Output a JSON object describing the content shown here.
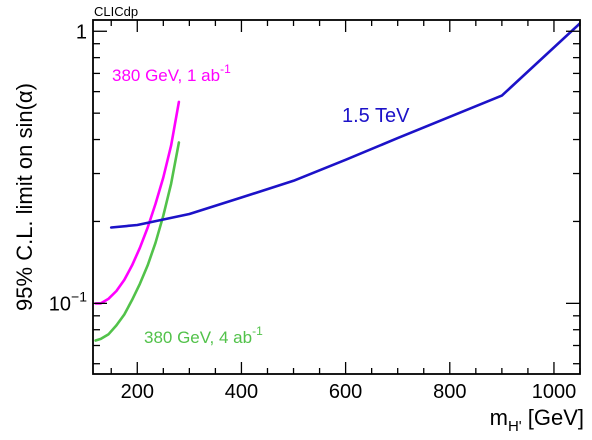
{
  "chart_data": {
    "type": "line",
    "tag": "CLICdp",
    "xlabel": {
      "base": "m",
      "sub": "H'",
      "unit": " [GeV]"
    },
    "ylabel": {
      "text": "95% C.L. limit  on sin(",
      "alpha": "α",
      "close": ")"
    },
    "xlim": [
      115,
      1050
    ],
    "ylim": [
      0.055,
      1.1
    ],
    "yscale": "log",
    "grid": false,
    "x_ticks": [
      200,
      400,
      600,
      800,
      1000
    ],
    "y_ticks": [
      {
        "value": 1,
        "label": "1"
      },
      {
        "value": 0.1,
        "label_base": "10",
        "label_sup": "−1"
      }
    ],
    "series": [
      {
        "name": "380 GeV, 1 ab-1",
        "label": {
          "text": "380 GeV, 1 ab",
          "sup": "-1"
        },
        "color": "#ff00ff",
        "x": [
          120,
          130,
          145,
          160,
          175,
          190,
          205,
          220,
          235,
          250,
          265,
          280
        ],
        "y": [
          0.1,
          0.1,
          0.104,
          0.111,
          0.122,
          0.138,
          0.16,
          0.19,
          0.232,
          0.29,
          0.38,
          0.55
        ]
      },
      {
        "name": "380 GeV, 4 ab-1",
        "label": {
          "text": "380 GeV, 4 ab",
          "sup": "-1"
        },
        "color": "#52c24a",
        "x": [
          120,
          130,
          145,
          160,
          175,
          190,
          205,
          220,
          235,
          250,
          265,
          280
        ],
        "y": [
          0.073,
          0.074,
          0.077,
          0.083,
          0.091,
          0.103,
          0.118,
          0.138,
          0.167,
          0.21,
          0.275,
          0.39
        ]
      },
      {
        "name": "1.5 TeV",
        "label": {
          "text": "1.5 TeV",
          "sup": ""
        },
        "color": "#1c12c8",
        "x": [
          150,
          200,
          300,
          400,
          500,
          600,
          700,
          800,
          900,
          1050
        ],
        "y": [
          0.19,
          0.194,
          0.213,
          0.245,
          0.282,
          0.337,
          0.405,
          0.485,
          0.58,
          1.07
        ]
      }
    ]
  }
}
